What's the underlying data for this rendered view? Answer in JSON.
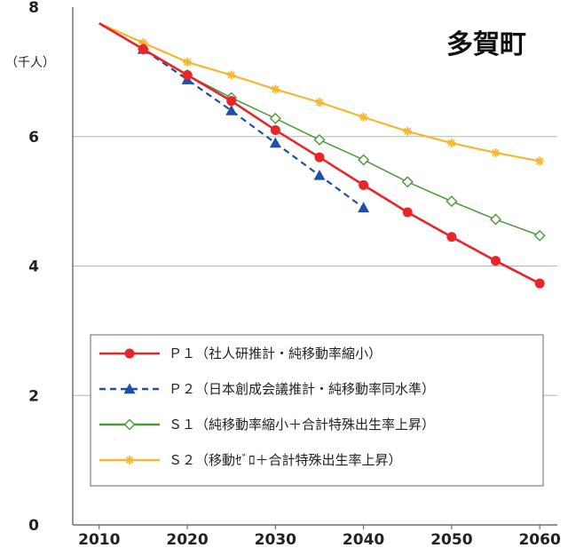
{
  "chart_data": {
    "type": "line",
    "title": "多賀町",
    "ylabel": "（千人）",
    "x": [
      2010,
      2015,
      2020,
      2025,
      2030,
      2035,
      2040,
      2045,
      2050,
      2055,
      2060
    ],
    "xticks": [
      2010,
      2020,
      2030,
      2040,
      2050,
      2060
    ],
    "yticks": [
      0,
      2,
      4,
      6,
      8
    ],
    "ylim": [
      0,
      8
    ],
    "xlim": [
      2007,
      2062
    ],
    "grid": "horizontal",
    "legend": "bottom-center",
    "series": [
      {
        "name": "Ｐ１（社人研推計・純移動率縮小）",
        "values": [
          7.75,
          7.35,
          6.95,
          6.55,
          6.1,
          5.68,
          5.25,
          4.83,
          4.45,
          4.08,
          3.73
        ],
        "color": "#e8262a",
        "marker": "circle-filled",
        "dash": "solid"
      },
      {
        "name": "Ｐ２（日本創成会議推計・純移動率同水準）",
        "values": [
          7.75,
          7.35,
          6.88,
          6.4,
          5.9,
          5.4,
          4.9,
          null,
          null,
          null,
          null
        ],
        "color": "#1f4fa8",
        "marker": "triangle-filled",
        "dash": "dashed"
      },
      {
        "name": "Ｓ１（純移動率縮小＋合計特殊出生率上昇）",
        "values": [
          7.75,
          7.35,
          6.95,
          6.6,
          6.28,
          5.95,
          5.64,
          5.3,
          5.0,
          4.72,
          4.47
        ],
        "color": "#4a9a3a",
        "marker": "diamond-open",
        "dash": "solid"
      },
      {
        "name": "Ｓ２（移動ｾﾞﾛ＋合計特殊出生率上昇）",
        "values": [
          7.75,
          7.45,
          7.15,
          6.95,
          6.73,
          6.53,
          6.3,
          6.08,
          5.9,
          5.75,
          5.62
        ],
        "color": "#f5b731",
        "marker": "star",
        "dash": "solid"
      }
    ]
  }
}
